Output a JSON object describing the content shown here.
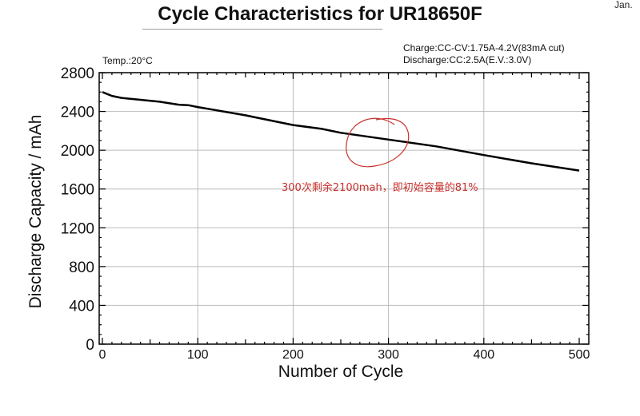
{
  "corner_text": "Jan.",
  "conditions": {
    "charge": "Charge:CC-CV:1.75A-4.2V(83mA cut)",
    "discharge": "Discharge:CC:2.5A(E.V.:3.0V)",
    "temp": "Temp.:20°C"
  },
  "annotation": {
    "text": "300次剩余2100mah，即初始容量的81%",
    "color": "#c8302c"
  },
  "chart_data": {
    "type": "line",
    "title": "Cycle Characteristics for UR18650F",
    "xlabel": "Number  of  Cycle",
    "ylabel": "Discharge  Capacity  /  mAh",
    "xlim": [
      0,
      500
    ],
    "ylim": [
      0,
      2800
    ],
    "xticks": [
      0,
      100,
      200,
      300,
      400,
      500
    ],
    "yticks": [
      0,
      400,
      800,
      1200,
      1600,
      2000,
      2400,
      2800
    ],
    "grid": true,
    "line_color": "#000000",
    "x": [
      0,
      10,
      20,
      40,
      60,
      80,
      90,
      100,
      150,
      160,
      200,
      230,
      250,
      300,
      350,
      400,
      450,
      500
    ],
    "values": [
      2600,
      2560,
      2540,
      2520,
      2500,
      2470,
      2465,
      2445,
      2360,
      2340,
      2260,
      2220,
      2180,
      2110,
      2040,
      1950,
      1865,
      1790
    ]
  }
}
